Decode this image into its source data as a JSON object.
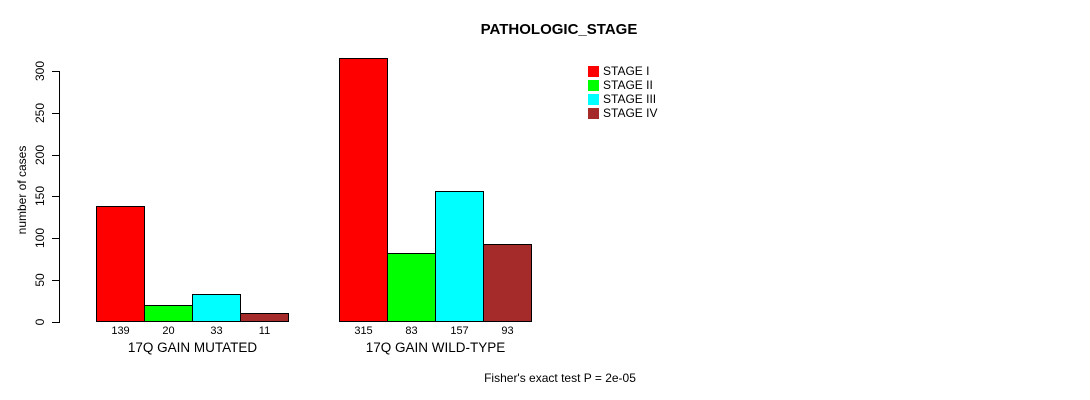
{
  "chart_data": {
    "type": "bar",
    "title": "PATHOLOGIC_STAGE",
    "ylabel": "number of cases",
    "ylim": [
      0,
      300
    ],
    "yticks": [
      0,
      50,
      100,
      150,
      200,
      250,
      300
    ],
    "grid": false,
    "legend_position": "top-right",
    "categories": [
      "17Q GAIN MUTATED",
      "17Q GAIN WILD-TYPE"
    ],
    "series": [
      {
        "name": "STAGE I",
        "color": "#ff0000",
        "values": [
          139,
          315
        ]
      },
      {
        "name": "STAGE II",
        "color": "#00ff00",
        "values": [
          20,
          83
        ]
      },
      {
        "name": "STAGE III",
        "color": "#00ffff",
        "values": [
          33,
          157
        ]
      },
      {
        "name": "STAGE IV",
        "color": "#a52a2a",
        "values": [
          11,
          93
        ]
      }
    ],
    "bar_value_labels": [
      [
        139,
        20,
        33,
        11
      ],
      [
        315,
        83,
        157,
        93
      ]
    ],
    "footnote": "Fisher's exact test P = 2e-05"
  }
}
